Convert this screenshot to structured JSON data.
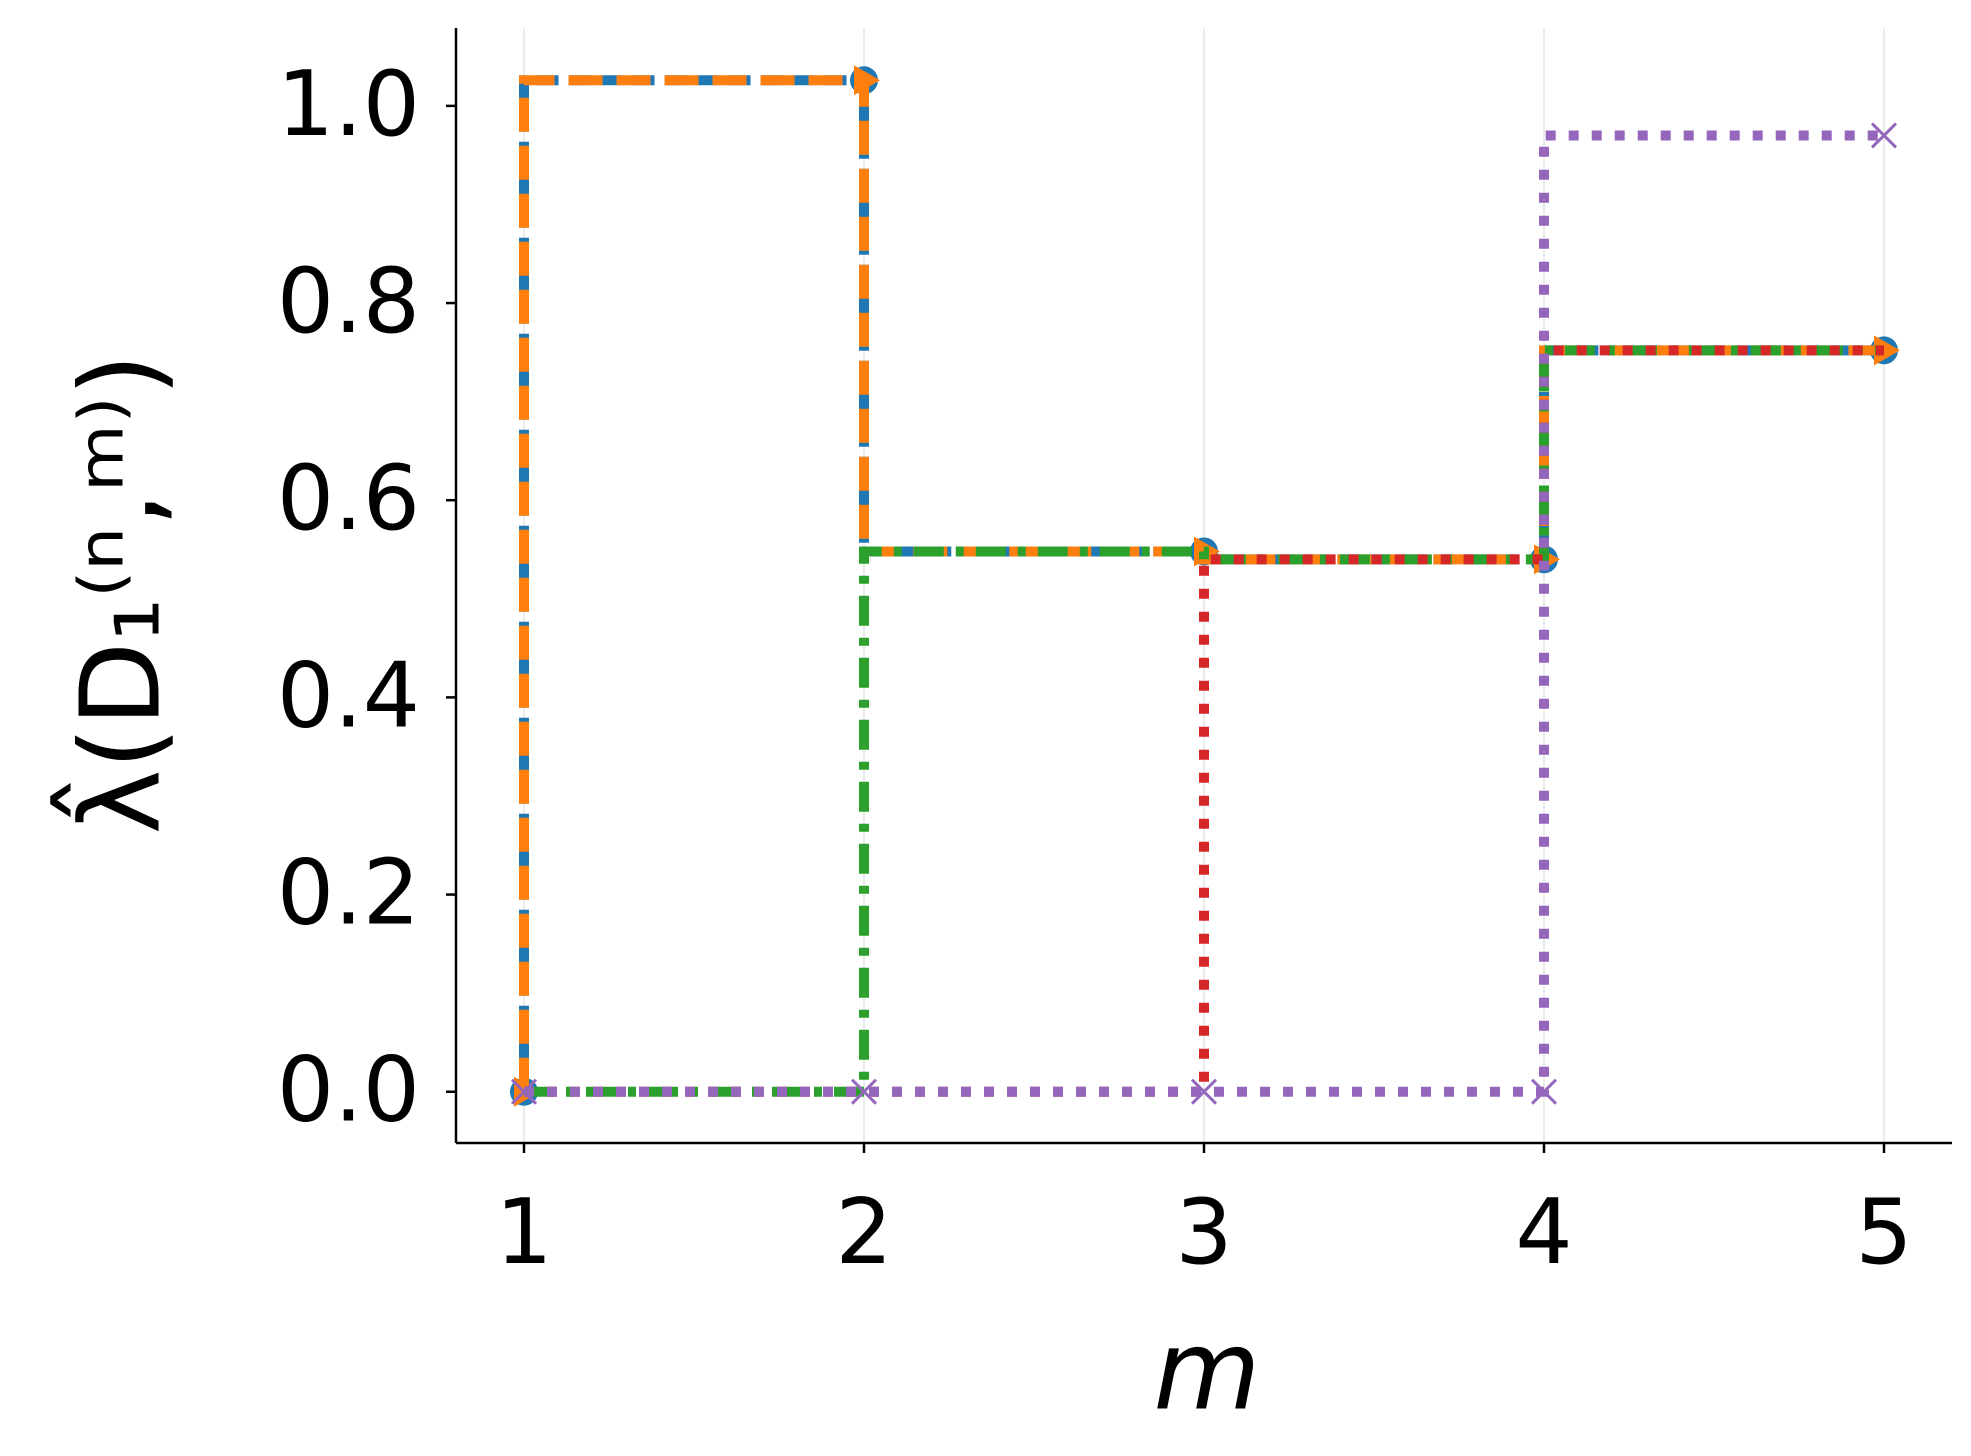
{
  "chart_data": {
    "type": "step",
    "step_where": "pre",
    "xlabel": "m",
    "ylabel": "λ̂(D₁⁽ⁿ,ᵐ⁾)",
    "x": [
      1,
      2,
      3,
      4,
      5
    ],
    "series": [
      {
        "color": "#1f77b4",
        "marker": "o",
        "linestyle": "dashed",
        "values": [
          0,
          1.026,
          0.548,
          0.54,
          0.752
        ]
      },
      {
        "color": "#ff7f0e",
        "marker": ">",
        "linestyle": "longdash",
        "values": [
          0,
          1.026,
          0.548,
          0.54,
          0.752
        ]
      },
      {
        "color": "#2ca02c",
        "linestyle": "dashdot",
        "values": [
          0,
          0,
          0.548,
          0.54,
          0.752
        ]
      },
      {
        "color": "#d62728",
        "linestyle": "dotted",
        "values": [
          0,
          0,
          0,
          0.54,
          0.752
        ]
      },
      {
        "color": "#9467bd",
        "marker": "x",
        "linestyle": "dotted",
        "values": [
          0,
          0,
          0,
          0,
          0.97
        ]
      }
    ],
    "xlim": [
      0.8,
      5.2
    ],
    "ylim": [
      -0.052,
      1.079
    ],
    "xticks": [
      1,
      2,
      3,
      4,
      5
    ],
    "yticks": [
      {
        "value": 0,
        "label": "0.0"
      },
      {
        "value": 0.2,
        "label": "0.2"
      },
      {
        "value": 0.4,
        "label": "0.4"
      },
      {
        "value": 0.6,
        "label": "0.6"
      },
      {
        "value": 0.8,
        "label": "0.8"
      },
      {
        "value": 1.0,
        "label": "1.0"
      }
    ],
    "grid": "x"
  }
}
